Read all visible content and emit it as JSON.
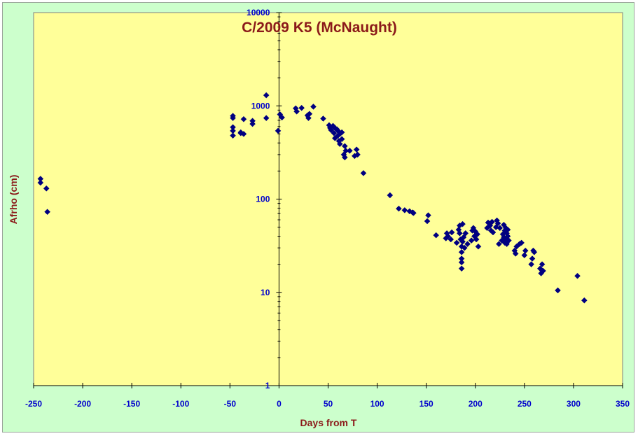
{
  "chart_data": {
    "type": "scatter",
    "title": "C/2009 K5 (McNaught)",
    "xlabel": "Days from T",
    "ylabel": "Afrho (cm)",
    "xlim": [
      -250,
      350
    ],
    "ylim": [
      1,
      10000
    ],
    "y_scale": "log",
    "x_ticks": [
      -250,
      -200,
      -150,
      -100,
      -50,
      0,
      50,
      100,
      150,
      200,
      250,
      300,
      350
    ],
    "x_tick_labels": [
      "-250",
      "-200",
      "-150",
      "-100",
      "-50",
      "0",
      "50",
      "100",
      "150",
      "200",
      "250",
      "300",
      "350"
    ],
    "y_ticks": [
      1,
      10,
      100,
      1000,
      10000
    ],
    "y_tick_labels": [
      "1",
      "10",
      "100",
      "1000",
      "10000"
    ],
    "grid": false,
    "legend": "none",
    "colors": {
      "plot_bg": "#ffff99",
      "frame_bg": "#ccffcc",
      "marker": "#000080",
      "title": "#8b1a1a",
      "ticks": "#0000cc"
    },
    "marker": "diamond",
    "points": [
      [
        -243,
        165
      ],
      [
        -243,
        150
      ],
      [
        -237,
        130
      ],
      [
        -236,
        73
      ],
      [
        -47,
        780
      ],
      [
        -47,
        740
      ],
      [
        -47,
        590
      ],
      [
        -47,
        540
      ],
      [
        -47,
        480
      ],
      [
        -39,
        520
      ],
      [
        -39,
        510
      ],
      [
        -36,
        720
      ],
      [
        -36,
        500
      ],
      [
        -27,
        690
      ],
      [
        -27,
        640
      ],
      [
        -13,
        1300
      ],
      [
        -13,
        740
      ],
      [
        -1,
        540
      ],
      [
        1,
        810
      ],
      [
        3,
        750
      ],
      [
        17,
        940
      ],
      [
        18,
        870
      ],
      [
        23,
        950
      ],
      [
        29,
        790
      ],
      [
        30,
        740
      ],
      [
        31,
        820
      ],
      [
        35,
        980
      ],
      [
        45,
        730
      ],
      [
        51,
        620
      ],
      [
        52,
        580
      ],
      [
        53,
        550
      ],
      [
        55,
        610
      ],
      [
        56,
        510
      ],
      [
        57,
        580
      ],
      [
        57,
        450
      ],
      [
        59,
        560
      ],
      [
        60,
        540
      ],
      [
        60,
        480
      ],
      [
        61,
        420
      ],
      [
        62,
        500
      ],
      [
        62,
        390
      ],
      [
        64,
        520
      ],
      [
        64,
        440
      ],
      [
        66,
        300
      ],
      [
        67,
        370
      ],
      [
        67,
        280
      ],
      [
        68,
        330
      ],
      [
        72,
        330
      ],
      [
        77,
        290
      ],
      [
        79,
        340
      ],
      [
        80,
        300
      ],
      [
        86,
        190
      ],
      [
        113,
        110
      ],
      [
        122,
        79
      ],
      [
        128,
        76
      ],
      [
        133,
        74
      ],
      [
        136,
        72
      ],
      [
        137,
        71
      ],
      [
        151,
        58
      ],
      [
        152,
        67
      ],
      [
        160,
        41
      ],
      [
        170,
        38
      ],
      [
        171,
        43
      ],
      [
        172,
        40
      ],
      [
        175,
        37
      ],
      [
        176,
        44
      ],
      [
        181,
        34
      ],
      [
        183,
        47
      ],
      [
        184,
        52
      ],
      [
        184,
        43
      ],
      [
        185,
        37
      ],
      [
        186,
        31
      ],
      [
        186,
        27
      ],
      [
        186,
        23
      ],
      [
        186,
        21
      ],
      [
        186,
        18
      ],
      [
        187,
        54
      ],
      [
        187,
        35
      ],
      [
        188,
        39
      ],
      [
        189,
        30
      ],
      [
        190,
        43
      ],
      [
        192,
        33
      ],
      [
        196,
        36
      ],
      [
        197,
        46
      ],
      [
        198,
        49
      ],
      [
        199,
        40
      ],
      [
        200,
        45
      ],
      [
        201,
        37
      ],
      [
        202,
        42
      ],
      [
        203,
        31
      ],
      [
        212,
        49
      ],
      [
        213,
        56
      ],
      [
        215,
        52
      ],
      [
        216,
        46
      ],
      [
        217,
        57
      ],
      [
        218,
        44
      ],
      [
        221,
        50
      ],
      [
        222,
        59
      ],
      [
        223,
        55
      ],
      [
        224,
        33
      ],
      [
        225,
        49
      ],
      [
        227,
        36
      ],
      [
        228,
        42
      ],
      [
        229,
        39
      ],
      [
        229,
        53
      ],
      [
        230,
        46
      ],
      [
        230,
        34
      ],
      [
        231,
        49
      ],
      [
        231,
        37
      ],
      [
        232,
        43
      ],
      [
        232,
        33
      ],
      [
        233,
        40
      ],
      [
        233,
        47
      ],
      [
        234,
        36
      ],
      [
        240,
        28
      ],
      [
        241,
        26
      ],
      [
        242,
        31
      ],
      [
        245,
        33
      ],
      [
        247,
        34
      ],
      [
        250,
        25
      ],
      [
        251,
        28
      ],
      [
        257,
        20
      ],
      [
        258,
        23
      ],
      [
        259,
        28
      ],
      [
        260,
        27
      ],
      [
        266,
        18
      ],
      [
        267,
        16
      ],
      [
        268,
        20
      ],
      [
        269,
        17
      ],
      [
        284,
        10.5
      ],
      [
        304,
        15
      ],
      [
        311,
        8.2
      ]
    ]
  }
}
